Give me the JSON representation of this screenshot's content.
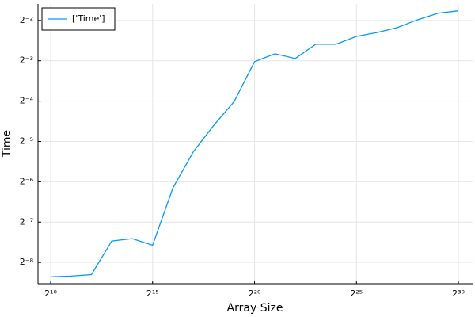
{
  "chart_data": {
    "type": "line",
    "x_label": "Array Size",
    "y_label": "Time",
    "log_x": true,
    "log_y": true,
    "log_base": 2,
    "grid": true,
    "legend": "top-left",
    "x": [
      1024,
      2048,
      4096,
      8192,
      16384,
      32768,
      65536,
      131072,
      262144,
      524288,
      1048576,
      2097152,
      4194304,
      8388608,
      16777216,
      33554432,
      67108864,
      134217728,
      268435456,
      536870912,
      1073741824
    ],
    "series": [
      {
        "name": "['Time']",
        "color": "#009af9",
        "values": [
          0.00305,
          0.00309,
          0.00317,
          0.00565,
          0.00588,
          0.00525,
          0.0141,
          0.0262,
          0.0412,
          0.062,
          0.123,
          0.141,
          0.13,
          0.166,
          0.166,
          0.19,
          0.203,
          0.221,
          0.253,
          0.283,
          0.295
        ]
      }
    ],
    "xlim": [
      666,
      1740000000
    ],
    "ylim": [
      0.00271,
      0.332
    ],
    "xticks": [
      {
        "value": 1024,
        "label": "2¹⁰"
      },
      {
        "value": 32768,
        "label": "2¹⁵"
      },
      {
        "value": 1048576,
        "label": "2²⁰"
      },
      {
        "value": 33554432,
        "label": "2²⁵"
      },
      {
        "value": 1073741824,
        "label": "2³⁰"
      }
    ],
    "yticks": [
      {
        "value": 0.25,
        "label": "2⁻²"
      },
      {
        "value": 0.125,
        "label": "2⁻³"
      },
      {
        "value": 0.0625,
        "label": "2⁻⁴"
      },
      {
        "value": 0.03125,
        "label": "2⁻⁵"
      },
      {
        "value": 0.015625,
        "label": "2⁻⁶"
      },
      {
        "value": 0.0078125,
        "label": "2⁻⁷"
      },
      {
        "value": 0.00390625,
        "label": "2⁻⁸"
      }
    ]
  }
}
